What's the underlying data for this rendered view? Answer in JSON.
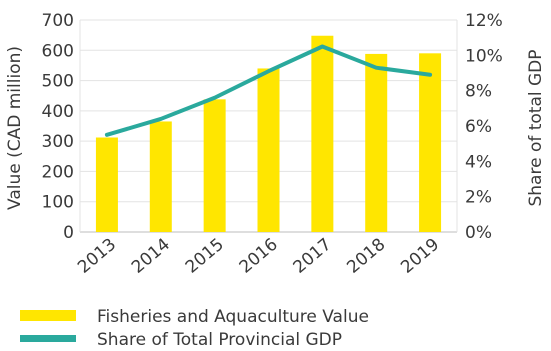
{
  "chart_data": {
    "type": "bar",
    "categories": [
      "2013",
      "2014",
      "2015",
      "2016",
      "2017",
      "2018",
      "2019"
    ],
    "series": [
      {
        "name": "Fisheries and Aquaculture Value",
        "type": "bar",
        "axis": "left",
        "color": "#ffe600",
        "values": [
          312,
          365,
          438,
          540,
          648,
          588,
          590
        ]
      },
      {
        "name": "Share of Total Provincial GDP",
        "type": "line",
        "axis": "right",
        "color": "#2aa99d",
        "values": [
          5.5,
          6.4,
          7.6,
          9.1,
          10.5,
          9.3,
          8.9
        ]
      }
    ],
    "ylabel": "Value (CAD million)",
    "ylim": [
      0,
      700
    ],
    "yticks": [
      "0",
      "100",
      "200",
      "300",
      "400",
      "500",
      "600",
      "700"
    ],
    "y2label": "Share of total GDP",
    "y2lim": [
      0,
      12
    ],
    "y2ticks": [
      "0%",
      "2%",
      "4%",
      "6%",
      "8%",
      "10%",
      "12%"
    ],
    "grid": true,
    "legend_position": "bottom-left"
  }
}
